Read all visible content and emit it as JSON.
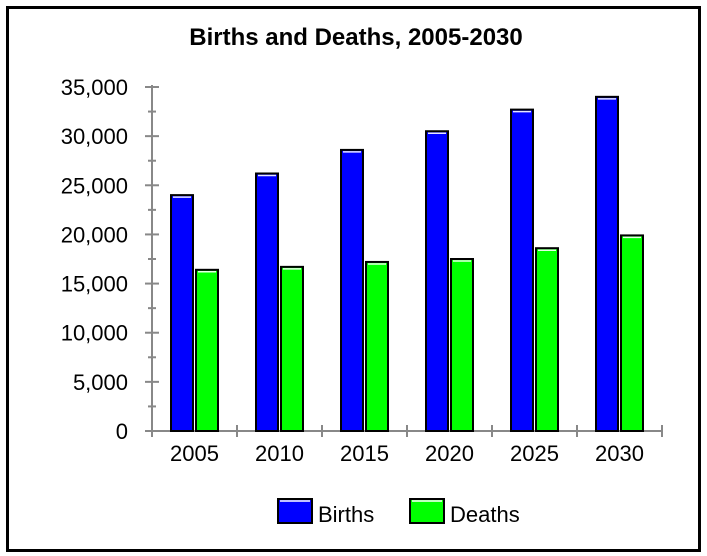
{
  "chart_data": {
    "type": "bar",
    "title": "Births and Deaths, 2005-2030",
    "xlabel": "",
    "ylabel": "",
    "categories": [
      "2005",
      "2010",
      "2015",
      "2020",
      "2025",
      "2030"
    ],
    "series": [
      {
        "name": "Births",
        "color": "#0000ff",
        "values": [
          24000,
          26200,
          28600,
          30500,
          32700,
          34000
        ]
      },
      {
        "name": "Deaths",
        "color": "#00ff00",
        "values": [
          16400,
          16700,
          17200,
          17500,
          18600,
          19900
        ]
      }
    ],
    "ylim": [
      0,
      35000
    ],
    "yticks": [
      {
        "value": 0,
        "label": "0"
      },
      {
        "value": 5000,
        "label": "5,000"
      },
      {
        "value": 10000,
        "label": "10,000"
      },
      {
        "value": 15000,
        "label": "15,000"
      },
      {
        "value": 20000,
        "label": "20,000"
      },
      {
        "value": 25000,
        "label": "25,000"
      },
      {
        "value": 30000,
        "label": "30,000"
      },
      {
        "value": 35000,
        "label": "35,000"
      }
    ],
    "grid": false,
    "legend_position": "bottom"
  }
}
